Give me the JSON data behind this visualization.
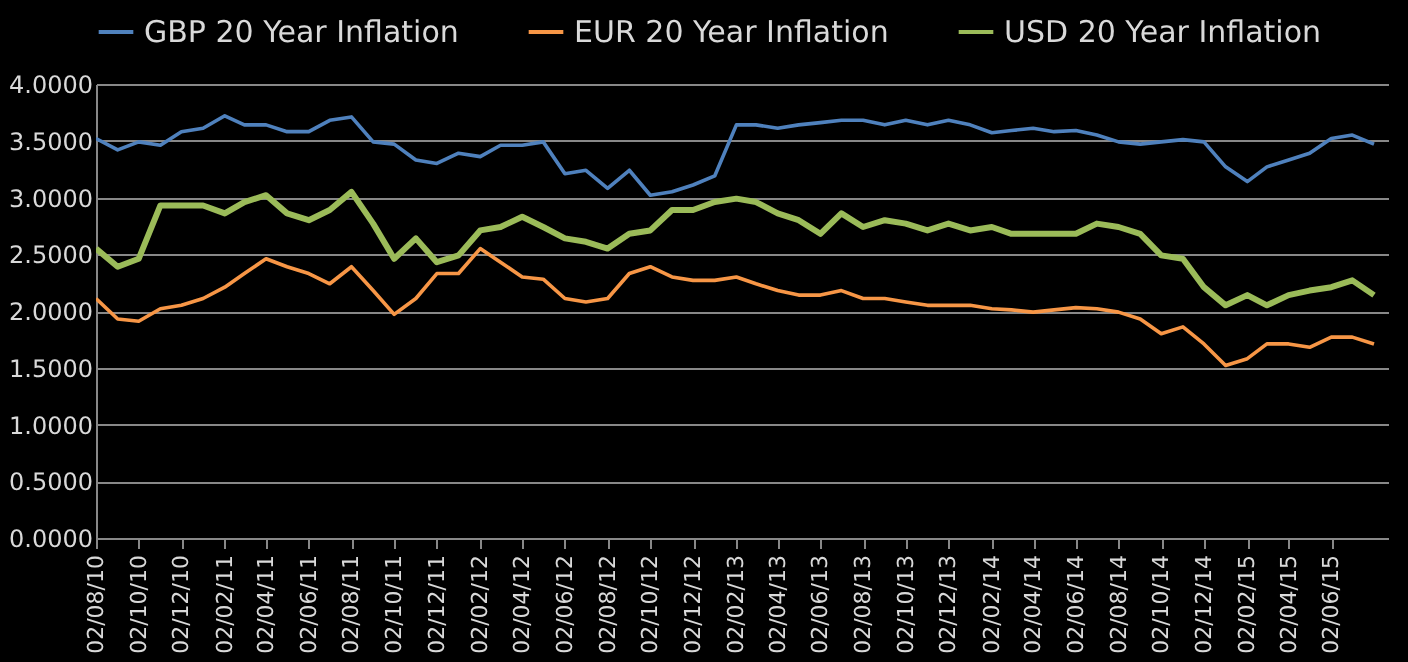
{
  "chart_data": {
    "type": "line",
    "x": [
      "2010-08-02",
      "2010-09-02",
      "2010-10-02",
      "2010-11-02",
      "2010-12-02",
      "2011-01-02",
      "2011-02-02",
      "2011-03-02",
      "2011-04-02",
      "2011-05-02",
      "2011-06-02",
      "2011-07-02",
      "2011-08-02",
      "2011-09-02",
      "2011-10-02",
      "2011-11-02",
      "2011-12-02",
      "2012-01-02",
      "2012-02-02",
      "2012-03-02",
      "2012-04-02",
      "2012-05-02",
      "2012-06-02",
      "2012-07-02",
      "2012-08-02",
      "2012-09-02",
      "2012-10-02",
      "2012-11-02",
      "2012-12-02",
      "2013-01-02",
      "2013-02-02",
      "2013-03-02",
      "2013-04-02",
      "2013-05-02",
      "2013-06-02",
      "2013-07-02",
      "2013-08-02",
      "2013-09-02",
      "2013-10-02",
      "2013-11-02",
      "2013-12-02",
      "2014-01-02",
      "2014-02-02",
      "2014-03-02",
      "2014-04-02",
      "2014-05-02",
      "2014-06-02",
      "2014-07-02",
      "2014-08-02",
      "2014-09-02",
      "2014-10-02",
      "2014-11-02",
      "2014-12-02",
      "2015-01-02",
      "2015-02-02",
      "2015-03-02",
      "2015-04-02",
      "2015-05-02",
      "2015-06-02",
      "2015-07-02",
      "2015-08-02"
    ],
    "series": [
      {
        "name": "GBP 20 Year Inflation",
        "color": "#4f81bd",
        "values": [
          3.52,
          3.42,
          3.49,
          3.46,
          3.58,
          3.61,
          3.72,
          3.64,
          3.64,
          3.58,
          3.58,
          3.68,
          3.71,
          3.49,
          3.47,
          3.33,
          3.3,
          3.39,
          3.36,
          3.46,
          3.46,
          3.49,
          3.21,
          3.24,
          3.08,
          3.24,
          3.02,
          3.05,
          3.11,
          3.19,
          3.64,
          3.64,
          3.61,
          3.64,
          3.66,
          3.68,
          3.68,
          3.64,
          3.68,
          3.64,
          3.68,
          3.64,
          3.57,
          3.59,
          3.61,
          3.58,
          3.59,
          3.55,
          3.49,
          3.47,
          3.49,
          3.51,
          3.49,
          3.27,
          3.14,
          3.27,
          3.33,
          3.39,
          3.52,
          3.55,
          3.47
        ]
      },
      {
        "name": "EUR 20 Year Inflation",
        "color": "#f79646",
        "values": [
          2.11,
          1.93,
          1.91,
          2.02,
          2.05,
          2.11,
          2.21,
          2.33,
          2.46,
          2.39,
          2.33,
          2.24,
          2.39,
          2.18,
          1.97,
          2.11,
          2.33,
          2.33,
          2.55,
          2.43,
          2.3,
          2.28,
          2.11,
          2.08,
          2.11,
          2.33,
          2.39,
          2.3,
          2.27,
          2.27,
          2.3,
          2.24,
          2.18,
          2.14,
          2.14,
          2.18,
          2.11,
          2.11,
          2.08,
          2.05,
          2.05,
          2.05,
          2.02,
          2.01,
          1.99,
          2.01,
          2.03,
          2.02,
          1.99,
          1.93,
          1.8,
          1.86,
          1.71,
          1.52,
          1.58,
          1.71,
          1.71,
          1.68,
          1.77,
          1.77,
          1.71
        ]
      },
      {
        "name": "USD 20 Year Inflation",
        "color": "#9bbb59",
        "values": [
          2.55,
          2.39,
          2.46,
          2.93,
          2.93,
          2.93,
          2.86,
          2.96,
          3.02,
          2.86,
          2.8,
          2.89,
          3.05,
          2.77,
          2.46,
          2.64,
          2.43,
          2.49,
          2.71,
          2.74,
          2.83,
          2.74,
          2.64,
          2.61,
          2.55,
          2.68,
          2.71,
          2.89,
          2.89,
          2.96,
          2.99,
          2.96,
          2.86,
          2.8,
          2.68,
          2.86,
          2.74,
          2.8,
          2.77,
          2.71,
          2.77,
          2.71,
          2.74,
          2.68,
          2.68,
          2.68,
          2.68,
          2.77,
          2.74,
          2.68,
          2.49,
          2.46,
          2.21,
          2.05,
          2.14,
          2.05,
          2.14,
          2.18,
          2.21,
          2.27,
          2.14
        ]
      }
    ],
    "xlim": [
      "2010-08-02",
      "2015-08-22"
    ],
    "xticks": [
      {
        "value": "2010-08-02",
        "label": "02/08/10"
      },
      {
        "value": "2010-10-02",
        "label": "02/10/10"
      },
      {
        "value": "2010-12-02",
        "label": "02/12/10"
      },
      {
        "value": "2011-02-02",
        "label": "02/02/11"
      },
      {
        "value": "2011-04-02",
        "label": "02/04/11"
      },
      {
        "value": "2011-06-02",
        "label": "02/06/11"
      },
      {
        "value": "2011-08-02",
        "label": "02/08/11"
      },
      {
        "value": "2011-10-02",
        "label": "02/10/11"
      },
      {
        "value": "2011-12-02",
        "label": "02/12/11"
      },
      {
        "value": "2012-02-02",
        "label": "02/02/12"
      },
      {
        "value": "2012-04-02",
        "label": "02/04/12"
      },
      {
        "value": "2012-06-02",
        "label": "02/06/12"
      },
      {
        "value": "2012-08-02",
        "label": "02/08/12"
      },
      {
        "value": "2012-10-02",
        "label": "02/10/12"
      },
      {
        "value": "2012-12-02",
        "label": "02/12/12"
      },
      {
        "value": "2013-02-02",
        "label": "02/02/13"
      },
      {
        "value": "2013-04-02",
        "label": "02/04/13"
      },
      {
        "value": "2013-06-02",
        "label": "02/06/13"
      },
      {
        "value": "2013-08-02",
        "label": "02/08/13"
      },
      {
        "value": "2013-10-02",
        "label": "02/10/13"
      },
      {
        "value": "2013-12-02",
        "label": "02/12/13"
      },
      {
        "value": "2014-02-02",
        "label": "02/02/14"
      },
      {
        "value": "2014-04-02",
        "label": "02/04/14"
      },
      {
        "value": "2014-06-02",
        "label": "02/06/14"
      },
      {
        "value": "2014-08-02",
        "label": "02/08/14"
      },
      {
        "value": "2014-10-02",
        "label": "02/10/14"
      },
      {
        "value": "2014-12-02",
        "label": "02/12/14"
      },
      {
        "value": "2015-02-02",
        "label": "02/02/15"
      },
      {
        "value": "2015-04-02",
        "label": "02/04/15"
      },
      {
        "value": "2015-06-02",
        "label": "02/06/15"
      }
    ],
    "ylim": [
      0,
      4
    ],
    "yticks": [
      {
        "value": 0,
        "label": "0.0000"
      },
      {
        "value": 0.5,
        "label": "0.5000"
      },
      {
        "value": 1,
        "label": "1.0000"
      },
      {
        "value": 1.5,
        "label": "1.5000"
      },
      {
        "value": 2,
        "label": "2.0000"
      },
      {
        "value": 2.5,
        "label": "2.5000"
      },
      {
        "value": 3,
        "label": "3.0000"
      },
      {
        "value": 3.5,
        "label": "3.5000"
      },
      {
        "value": 4,
        "label": "4.0000"
      }
    ],
    "grid": "y",
    "legend": "top"
  }
}
